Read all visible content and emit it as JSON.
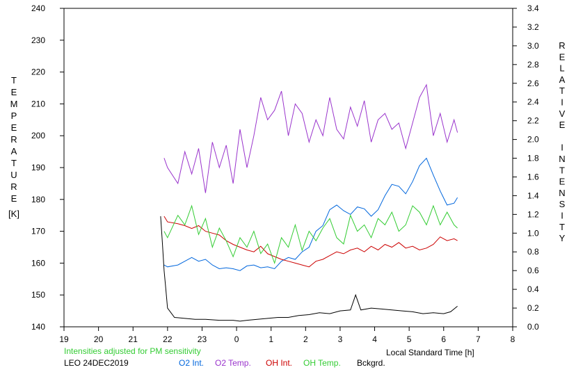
{
  "chart_data": {
    "type": "line",
    "left_axis_label": [
      "T",
      "E",
      "M",
      "P",
      "E",
      "R",
      "A",
      "T",
      "U",
      "R",
      "E"
    ],
    "left_axis_unit": "[K]",
    "right_axis_label": [
      "R",
      "E",
      "L",
      "A",
      "T",
      "I",
      "V",
      "E",
      "",
      "I",
      "N",
      "T",
      "E",
      "N",
      "S",
      "I",
      "T",
      "Y"
    ],
    "xlabel": "Local Standard Time [h]",
    "note": "Intensities adjusted for PM sensitivity",
    "station": "LEO 24DEC2019",
    "x_ticks": [
      "19",
      "20",
      "21",
      "22",
      "23",
      "0",
      "1",
      "2",
      "3",
      "4",
      "5",
      "6",
      "7",
      "8"
    ],
    "y_left_ticks": [
      "140",
      "150",
      "160",
      "170",
      "180",
      "190",
      "200",
      "210",
      "220",
      "230",
      "240"
    ],
    "y_right_ticks": [
      "0.0",
      "0.2",
      "0.4",
      "0.6",
      "0.8",
      "1.0",
      "1.2",
      "1.4",
      "1.6",
      "1.8",
      "2.0",
      "2.2",
      "2.4",
      "2.6",
      "2.8",
      "3.0",
      "3.2",
      "3.4"
    ],
    "x_range": [
      19,
      32
    ],
    "y_left_range": [
      140,
      240
    ],
    "y_right_range": [
      0,
      3.4
    ],
    "grid": false,
    "legend_position": "bottom",
    "series": [
      {
        "name": "O2 Int.",
        "color": "#0066dd",
        "axis": "right",
        "x": [
          21.9,
          22.0,
          22.3,
          22.5,
          22.7,
          22.9,
          23.1,
          23.3,
          23.5,
          23.7,
          23.9,
          24.1,
          24.3,
          24.5,
          24.7,
          24.9,
          25.1,
          25.3,
          25.5,
          25.7,
          25.9,
          26.1,
          26.3,
          26.5,
          26.7,
          26.9,
          27.1,
          27.3,
          27.5,
          27.7,
          27.9,
          28.1,
          28.3,
          28.5,
          28.7,
          28.9,
          29.1,
          29.3,
          29.5,
          29.7,
          29.9,
          30.1,
          30.3,
          30.4
        ],
        "y": [
          0.66,
          0.64,
          0.66,
          0.7,
          0.74,
          0.7,
          0.72,
          0.66,
          0.62,
          0.63,
          0.62,
          0.6,
          0.65,
          0.66,
          0.63,
          0.64,
          0.62,
          0.7,
          0.74,
          0.72,
          0.8,
          0.85,
          1.02,
          1.08,
          1.25,
          1.3,
          1.24,
          1.2,
          1.28,
          1.26,
          1.18,
          1.25,
          1.4,
          1.52,
          1.5,
          1.42,
          1.55,
          1.72,
          1.8,
          1.62,
          1.45,
          1.3,
          1.32,
          1.38
        ]
      },
      {
        "name": "O2 Temp.",
        "color": "#9933cc",
        "axis": "left",
        "x": [
          21.9,
          22.0,
          22.3,
          22.5,
          22.7,
          22.9,
          23.1,
          23.3,
          23.5,
          23.7,
          23.9,
          24.1,
          24.3,
          24.5,
          24.7,
          24.9,
          25.1,
          25.3,
          25.5,
          25.7,
          25.9,
          26.1,
          26.3,
          26.5,
          26.7,
          26.9,
          27.1,
          27.3,
          27.5,
          27.7,
          27.9,
          28.1,
          28.3,
          28.5,
          28.7,
          28.9,
          29.1,
          29.3,
          29.5,
          29.7,
          29.9,
          30.1,
          30.3,
          30.4
        ],
        "y": [
          193,
          190,
          185,
          195,
          188,
          196,
          182,
          198,
          190,
          197,
          185,
          202,
          190,
          200,
          212,
          205,
          208,
          214,
          200,
          210,
          207,
          198,
          205,
          200,
          212,
          202,
          199,
          209,
          203,
          211,
          198,
          205,
          207,
          202,
          204,
          196,
          204,
          212,
          216,
          200,
          207,
          198,
          205,
          201
        ]
      },
      {
        "name": "OH Int.",
        "color": "#cc0000",
        "axis": "right",
        "x": [
          21.9,
          22.0,
          22.3,
          22.5,
          22.7,
          22.9,
          23.1,
          23.3,
          23.5,
          23.7,
          23.9,
          24.1,
          24.3,
          24.5,
          24.7,
          24.9,
          25.1,
          25.3,
          25.5,
          25.7,
          25.9,
          26.1,
          26.3,
          26.5,
          26.7,
          26.9,
          27.1,
          27.3,
          27.5,
          27.7,
          27.9,
          28.1,
          28.3,
          28.5,
          28.7,
          28.9,
          29.1,
          29.3,
          29.5,
          29.7,
          29.9,
          30.1,
          30.3,
          30.4
        ],
        "y": [
          1.18,
          1.12,
          1.1,
          1.08,
          1.05,
          1.08,
          1.02,
          1.0,
          0.98,
          0.92,
          0.88,
          0.85,
          0.82,
          0.8,
          0.86,
          0.78,
          0.75,
          0.72,
          0.7,
          0.68,
          0.66,
          0.64,
          0.7,
          0.72,
          0.76,
          0.8,
          0.78,
          0.82,
          0.84,
          0.8,
          0.86,
          0.82,
          0.88,
          0.85,
          0.9,
          0.84,
          0.86,
          0.82,
          0.84,
          0.88,
          0.96,
          0.92,
          0.94,
          0.92
        ]
      },
      {
        "name": "OH Temp.",
        "color": "#33cc33",
        "axis": "left",
        "x": [
          21.9,
          22.0,
          22.3,
          22.5,
          22.7,
          22.9,
          23.1,
          23.3,
          23.5,
          23.7,
          23.9,
          24.1,
          24.3,
          24.5,
          24.7,
          24.9,
          25.1,
          25.3,
          25.5,
          25.7,
          25.9,
          26.1,
          26.3,
          26.5,
          26.7,
          26.9,
          27.1,
          27.3,
          27.5,
          27.7,
          27.9,
          28.1,
          28.3,
          28.5,
          28.7,
          28.9,
          29.1,
          29.3,
          29.5,
          29.7,
          29.9,
          30.1,
          30.3,
          30.4
        ],
        "y": [
          170,
          168,
          175,
          172,
          178,
          169,
          174,
          165,
          171,
          167,
          162,
          168,
          165,
          170,
          163,
          166,
          160,
          168,
          165,
          172,
          164,
          170,
          167,
          171,
          174,
          168,
          166,
          175,
          170,
          172,
          168,
          174,
          172,
          176,
          170,
          172,
          178,
          176,
          172,
          178,
          172,
          176,
          172,
          171
        ]
      },
      {
        "name": "Bckgrd.",
        "color": "#000000",
        "axis": "right",
        "x": [
          21.8,
          21.85,
          21.9,
          21.95,
          22.0,
          22.2,
          22.5,
          22.8,
          23.1,
          23.5,
          23.9,
          24.1,
          24.3,
          24.6,
          24.9,
          25.2,
          25.5,
          25.8,
          26.1,
          26.4,
          26.7,
          27.0,
          27.3,
          27.45,
          27.6,
          27.9,
          28.2,
          28.5,
          28.8,
          29.1,
          29.4,
          29.7,
          30.0,
          30.2,
          30.4
        ],
        "y": [
          1.18,
          0.9,
          0.6,
          0.4,
          0.2,
          0.1,
          0.09,
          0.08,
          0.08,
          0.07,
          0.07,
          0.06,
          0.07,
          0.08,
          0.09,
          0.1,
          0.1,
          0.12,
          0.13,
          0.15,
          0.14,
          0.17,
          0.18,
          0.34,
          0.18,
          0.2,
          0.19,
          0.18,
          0.17,
          0.16,
          0.14,
          0.15,
          0.14,
          0.16,
          0.22
        ]
      }
    ]
  }
}
